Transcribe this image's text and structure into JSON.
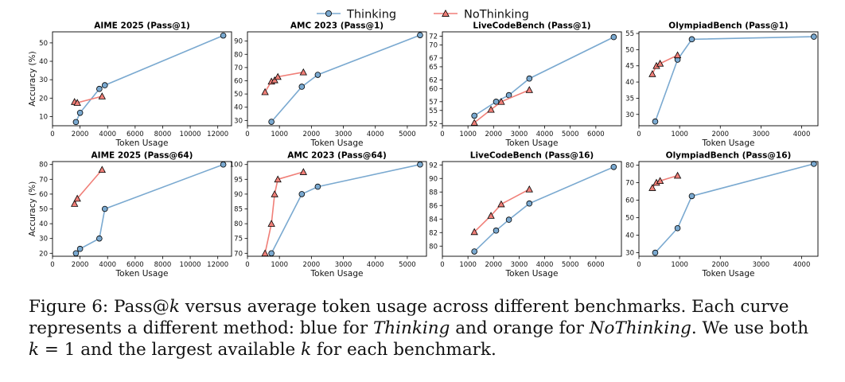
{
  "legend": {
    "position": "top-center",
    "items": [
      {
        "label": "Thinking",
        "color": "#7aa9d0",
        "marker": "circle"
      },
      {
        "label": "NoThinking",
        "color": "#f07f78",
        "marker": "triangle"
      }
    ]
  },
  "caption": {
    "lines": [
      [
        {
          "t": "Figure 6: Pass@"
        },
        {
          "t": "k",
          "i": true
        },
        {
          "t": " versus average token usage across different benchmarks. Each curve"
        }
      ],
      [
        {
          "t": "represents a different method: blue for "
        },
        {
          "t": "Thinking",
          "i": true
        },
        {
          "t": " and orange for "
        },
        {
          "t": "NoThinking",
          "i": true
        },
        {
          "t": ". We use both"
        }
      ],
      [
        {
          "t": "k",
          "i": true
        },
        {
          "t": " = 1 and the largest available "
        },
        {
          "t": "k",
          "i": true
        },
        {
          "t": " for each benchmark."
        }
      ]
    ]
  },
  "chart_data": [
    {
      "type": "line",
      "title": "AIME 2025 (Pass@1)",
      "xlabel": "Token Usage",
      "ylabel": "Accuracy (%)",
      "xlim": [
        0,
        13000
      ],
      "ylim": [
        5,
        56
      ],
      "xticks": [
        0,
        2000,
        4000,
        6000,
        8000,
        10000,
        12000
      ],
      "yticks": [
        10,
        20,
        30,
        40,
        50
      ],
      "grid": false,
      "series": [
        {
          "name": "Thinking",
          "x": [
            1700,
            2000,
            3400,
            3800,
            12400
          ],
          "y": [
            7,
            12,
            25,
            27,
            54
          ]
        },
        {
          "name": "NoThinking",
          "x": [
            1600,
            1800,
            3600
          ],
          "y": [
            18,
            17.5,
            21
          ]
        }
      ]
    },
    {
      "type": "line",
      "title": "AMC 2023 (Pass@1)",
      "xlabel": "Token Usage",
      "ylabel": "",
      "xlim": [
        0,
        5600
      ],
      "ylim": [
        26,
        97
      ],
      "xticks": [
        0,
        1000,
        2000,
        3000,
        4000,
        5000
      ],
      "yticks": [
        30,
        40,
        50,
        60,
        70,
        80,
        90
      ],
      "grid": false,
      "series": [
        {
          "name": "Thinking",
          "x": [
            750,
            1700,
            2200,
            5400
          ],
          "y": [
            29,
            55.5,
            64.5,
            94.5
          ]
        },
        {
          "name": "NoThinking",
          "x": [
            550,
            750,
            850,
            950,
            1750
          ],
          "y": [
            51.5,
            59.5,
            60.5,
            63,
            66.5
          ]
        }
      ]
    },
    {
      "type": "line",
      "title": "LiveCodeBench (Pass@1)",
      "xlabel": "Token Usage",
      "ylabel": "",
      "xlim": [
        0,
        7000
      ],
      "ylim": [
        51.5,
        73
      ],
      "xticks": [
        0,
        1000,
        2000,
        3000,
        4000,
        5000,
        6000
      ],
      "yticks": [
        52,
        55,
        57,
        60,
        62,
        65,
        67,
        70,
        72
      ],
      "grid": false,
      "series": [
        {
          "name": "Thinking",
          "x": [
            1250,
            2100,
            2600,
            3400,
            6700
          ],
          "y": [
            53.8,
            57,
            58.5,
            62.3,
            71.8
          ]
        },
        {
          "name": "NoThinking",
          "x": [
            1250,
            1900,
            2300,
            3400
          ],
          "y": [
            52.2,
            55.2,
            57,
            59.7
          ]
        }
      ]
    },
    {
      "type": "line",
      "title": "OlympiadBench (Pass@1)",
      "xlabel": "Token Usage",
      "ylabel": "",
      "xlim": [
        0,
        4400
      ],
      "ylim": [
        26.5,
        55.5
      ],
      "xticks": [
        0,
        1000,
        2000,
        3000,
        4000
      ],
      "yticks": [
        30,
        35,
        40,
        45,
        50,
        55
      ],
      "grid": false,
      "series": [
        {
          "name": "Thinking",
          "x": [
            400,
            950,
            1300,
            4300
          ],
          "y": [
            27.8,
            46.9,
            53.2,
            54
          ]
        },
        {
          "name": "NoThinking",
          "x": [
            330,
            430,
            520,
            950
          ],
          "y": [
            42.5,
            45,
            45.7,
            48.3
          ]
        }
      ]
    },
    {
      "type": "line",
      "title": "AIME 2025 (Pass@64)",
      "xlabel": "Token Usage",
      "ylabel": "Accuracy (%)",
      "xlim": [
        0,
        13000
      ],
      "ylim": [
        18,
        82
      ],
      "xticks": [
        0,
        2000,
        4000,
        6000,
        8000,
        10000,
        12000
      ],
      "yticks": [
        20,
        30,
        40,
        50,
        60,
        70,
        80
      ],
      "grid": false,
      "series": [
        {
          "name": "Thinking",
          "x": [
            1700,
            2000,
            3400,
            3800,
            12400
          ],
          "y": [
            20,
            23,
            30,
            50,
            80
          ]
        },
        {
          "name": "NoThinking",
          "x": [
            1600,
            1800,
            3600
          ],
          "y": [
            53.5,
            57,
            76.5
          ]
        }
      ]
    },
    {
      "type": "line",
      "title": "AMC 2023 (Pass@64)",
      "xlabel": "Token Usage",
      "ylabel": "",
      "xlim": [
        0,
        5600
      ],
      "ylim": [
        69,
        101
      ],
      "xticks": [
        0,
        1000,
        2000,
        3000,
        4000,
        5000
      ],
      "yticks": [
        70,
        75,
        80,
        85,
        90,
        95,
        100
      ],
      "grid": false,
      "series": [
        {
          "name": "Thinking",
          "x": [
            750,
            1700,
            2200,
            5400
          ],
          "y": [
            70,
            90,
            92.5,
            100
          ]
        },
        {
          "name": "NoThinking",
          "x": [
            550,
            750,
            850,
            950,
            1750
          ],
          "y": [
            70,
            80,
            90,
            95,
            97.5
          ]
        }
      ]
    },
    {
      "type": "line",
      "title": "LiveCodeBench (Pass@16)",
      "xlabel": "Token Usage",
      "ylabel": "",
      "xlim": [
        0,
        7000
      ],
      "ylim": [
        78.5,
        92.5
      ],
      "xticks": [
        0,
        1000,
        2000,
        3000,
        4000,
        5000,
        6000
      ],
      "yticks": [
        80,
        82,
        84,
        86,
        88,
        90,
        92
      ],
      "grid": false,
      "series": [
        {
          "name": "Thinking",
          "x": [
            1250,
            2100,
            2600,
            3400,
            6700
          ],
          "y": [
            79.2,
            82.3,
            83.9,
            86.3,
            91.7
          ]
        },
        {
          "name": "NoThinking",
          "x": [
            1250,
            1900,
            2300,
            3400
          ],
          "y": [
            82.1,
            84.5,
            86.2,
            88.4
          ]
        }
      ]
    },
    {
      "type": "line",
      "title": "OlympiadBench (Pass@16)",
      "xlabel": "Token Usage",
      "ylabel": "",
      "xlim": [
        0,
        4400
      ],
      "ylim": [
        28,
        82
      ],
      "xticks": [
        0,
        1000,
        2000,
        3000,
        4000
      ],
      "yticks": [
        30,
        40,
        50,
        60,
        70,
        80
      ],
      "grid": false,
      "series": [
        {
          "name": "Thinking",
          "x": [
            400,
            950,
            1300,
            4300
          ],
          "y": [
            30,
            44,
            62.3,
            80.7
          ]
        },
        {
          "name": "NoThinking",
          "x": [
            330,
            430,
            520,
            950
          ],
          "y": [
            67,
            70,
            71,
            74
          ]
        }
      ]
    }
  ]
}
